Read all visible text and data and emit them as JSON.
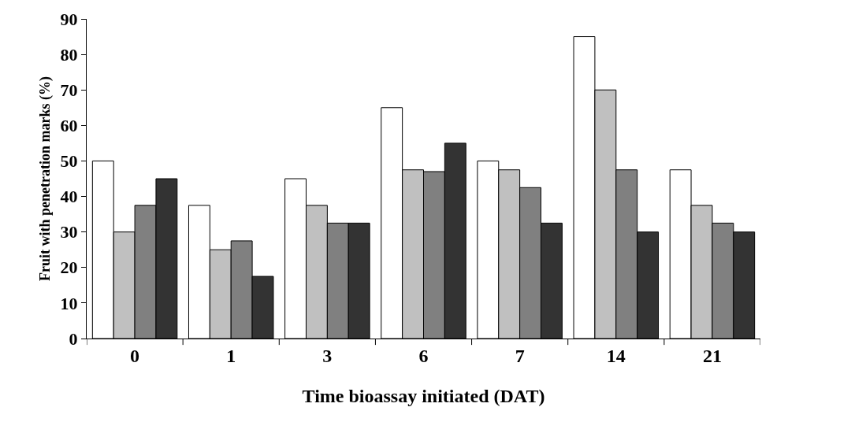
{
  "chart_data": {
    "type": "bar",
    "xlabel": "Time bioassay initiated (DAT)",
    "ylabel": "Fruit with penetration marks (%)",
    "categories": [
      "0",
      "1",
      "3",
      "6",
      "7",
      "14",
      "21"
    ],
    "series": [
      {
        "color": "#ffffff",
        "values": [
          50,
          37.5,
          45,
          65,
          50,
          85,
          47.5
        ]
      },
      {
        "color": "#c0c0c0",
        "values": [
          30,
          25,
          37.5,
          47.5,
          47.5,
          70,
          37.5
        ]
      },
      {
        "color": "#808080",
        "values": [
          37.5,
          27.5,
          32.5,
          47,
          42.5,
          47.5,
          32.5
        ]
      },
      {
        "color": "#333333",
        "values": [
          45,
          17.5,
          32.5,
          55,
          32.5,
          30,
          30
        ]
      }
    ],
    "ylim": [
      0,
      90
    ],
    "yticks": [
      0,
      10,
      20,
      30,
      40,
      50,
      60,
      70,
      80,
      90
    ],
    "legend": false
  }
}
